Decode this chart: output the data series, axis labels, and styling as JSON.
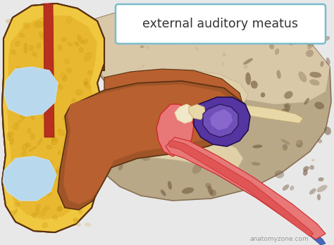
{
  "bg_color": "#e8e8e8",
  "title_text": "external auditory meatus",
  "title_box_color": "#ffffff",
  "title_border_color": "#7bbccc",
  "title_fontsize": 12.5,
  "title_fontcolor": "#333333",
  "watermark": "anatomyzone.com",
  "watermark_color": "#999999",
  "watermark_fontsize": 6.5,
  "colors": {
    "yellow_fat": "#e8b830",
    "yellow_fat2": "#f0c840",
    "yellow_fat_dark": "#c89820",
    "brown_skin": "#a05528",
    "brown_skin2": "#b86030",
    "brown_skin_dark": "#7a3a10",
    "light_blue": "#b8d8ee",
    "light_blue2": "#c8e0f0",
    "tan_bone_top": "#c8b898",
    "tan_bone_light": "#d8c8a8",
    "dark_bone": "#8a7055",
    "bone_bg": "#b8a888",
    "bone_spot": "#a09070",
    "red_vessel": "#cc2828",
    "pink_tympanic": "#e87878",
    "pink_light": "#f0a0a0",
    "purple_cochlea": "#5535a0",
    "purple_light": "#7050b8",
    "blue_nerve": "#4868b8",
    "blue_light": "#6888cc",
    "ivory": "#f0e8c8",
    "ivory2": "#e8d8a8",
    "dark_outline": "#5a3010",
    "red_stripe": "#b83020",
    "tan_meatus": "#c8a878",
    "cream_inner": "#e0d0a8"
  }
}
